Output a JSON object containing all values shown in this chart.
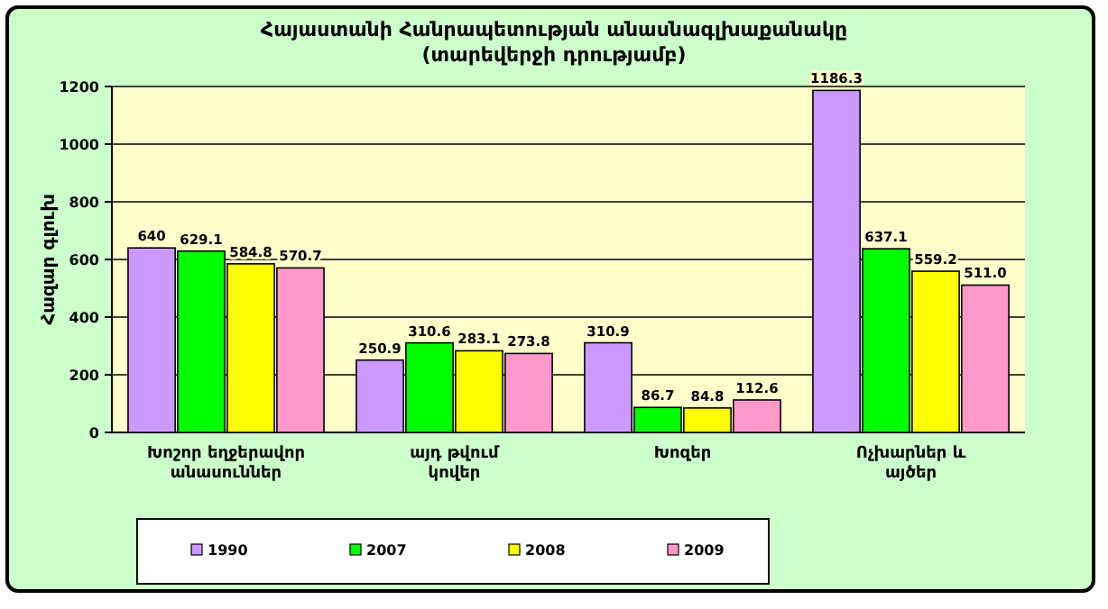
{
  "chart_data": {
    "type": "bar",
    "title": "Հայաստանի Հանրապետության անասնագլխաքանակը",
    "subtitle": "(տարեվերջի դրությամբ)",
    "ylabel": "Հազար գլուխ",
    "categories": [
      "Խոշոր եղջերավոր անասուններ",
      "այդ թվում կովեր",
      "Խոզեր",
      "Ոչխարներ և այծեր"
    ],
    "series": [
      {
        "name": "1990",
        "color": "#cc99ff",
        "values": [
          640,
          250.9,
          310.9,
          1186.3
        ],
        "value_labels": [
          "640",
          "250.9",
          "310.9",
          "1186.3"
        ]
      },
      {
        "name": "2007",
        "color": "#00ff00",
        "values": [
          629.1,
          310.6,
          86.7,
          637.1
        ],
        "value_labels": [
          "629.1",
          "310.6",
          "86.7",
          "637.1"
        ]
      },
      {
        "name": "2008",
        "color": "#ffff00",
        "values": [
          584.8,
          283.1,
          84.8,
          559.2
        ],
        "value_labels": [
          "584.8",
          "283.1",
          "84.8",
          "559.2"
        ]
      },
      {
        "name": "2009",
        "color": "#ff99cc",
        "values": [
          570.7,
          273.8,
          112.6,
          511.0
        ],
        "value_labels": [
          "570.7",
          "273.8",
          "112.6",
          "511.0"
        ]
      }
    ],
    "ylim": [
      0,
      1200
    ],
    "yticks": [
      0,
      200,
      400,
      600,
      800,
      1000,
      1200
    ],
    "grid": "y",
    "legend": "bottom"
  }
}
